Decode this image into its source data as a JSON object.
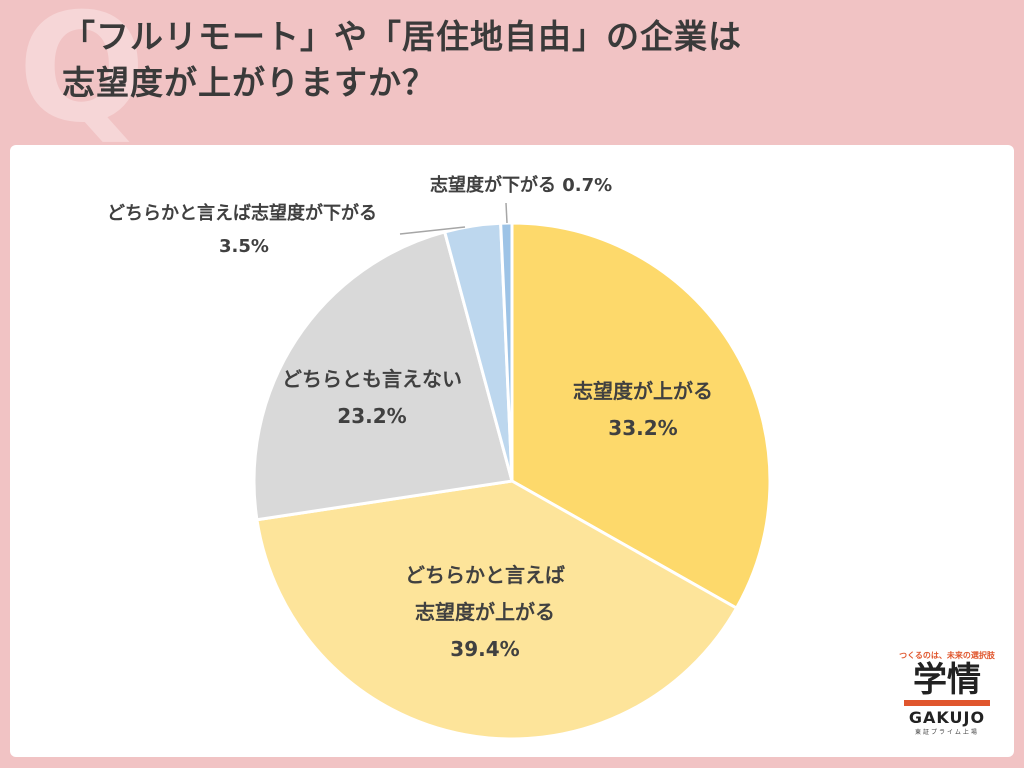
{
  "title": {
    "line1": "「フルリモート」や「居住地自由」の企業は",
    "line2": "志望度が上がりますか？",
    "q_mark": "Q"
  },
  "chart_data": {
    "type": "pie",
    "slices": [
      {
        "label": "志望度が上がる",
        "value": 33.2,
        "pct_text": "33.2%",
        "color": "#fdd96b"
      },
      {
        "label": "どちらかと言えば志望度が上がる",
        "value": 39.4,
        "pct_text": "39.4%",
        "color": "#fde49a"
      },
      {
        "label": "どちらとも言えない",
        "value": 23.2,
        "pct_text": "23.2%",
        "color": "#d9d9d9"
      },
      {
        "label": "どちらかと言えば志望度が下がる",
        "value": 3.5,
        "pct_text": "3.5%",
        "color": "#bdd7ee"
      },
      {
        "label": "志望度が下がる",
        "value": 0.7,
        "pct_text": "0.7%",
        "color": "#9dc3e6"
      }
    ],
    "labels": {
      "s0_line1": "志望度が上がる",
      "s0_line2": "33.2%",
      "s1_line1": "どちらかと言えば",
      "s1_line2": "志望度が上がる",
      "s1_line3": "39.4%",
      "s2_line1": "どちらとも言えない",
      "s2_line2": "23.2%",
      "s3_line1": "どちらかと言えば志望度が下がる",
      "s3_line2": "3.5%",
      "s4_line1": "志望度が下がる 0.7%"
    }
  },
  "logo": {
    "tagline": "つくるのは、未来の選択肢",
    "kanji": "学情",
    "name": "GAKUJO",
    "sub": "東証プライム上場"
  }
}
